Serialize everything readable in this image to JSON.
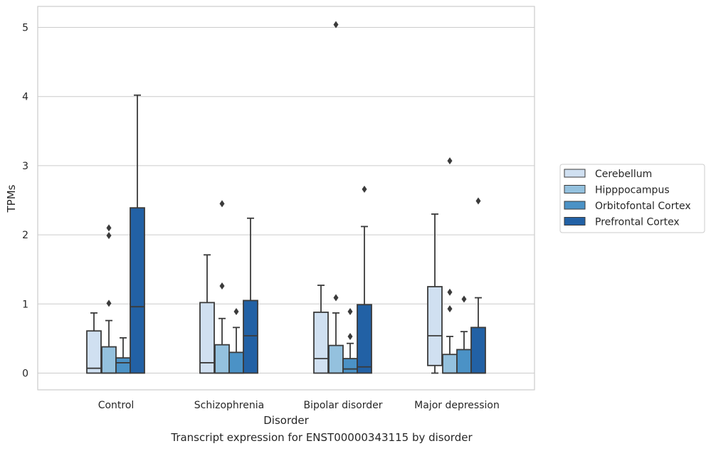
{
  "caption": "Transcript expression for ENST00000343115 by disorder",
  "colors": {
    "Cerebellum": "#d0e0f1",
    "Hipppocampus": "#94c1de",
    "Orbitofontal Cortex": "#4b92c6",
    "Prefrontal Cortex": "#2261a5",
    "line": "#3b3b3b",
    "grid": "#cccccc",
    "frame": "#cccccc"
  },
  "chart_data": {
    "type": "box",
    "title": "",
    "xlabel": "Disorder",
    "ylabel": "TPMs",
    "ylim": [
      -0.25,
      5.3
    ],
    "yticks": [
      0,
      1,
      2,
      3,
      4,
      5
    ],
    "grid": "horizontal",
    "legend": "right",
    "categories": [
      "Control",
      "Schizophrenia",
      "Bipolar disorder",
      "Major depression"
    ],
    "series": [
      {
        "name": "Cerebellum",
        "boxes": [
          {
            "whislo": 0,
            "q1": 0,
            "med": 0.07,
            "q3": 0.61,
            "whishi": 0.87,
            "fliers": []
          },
          {
            "whislo": 0,
            "q1": 0,
            "med": 0.15,
            "q3": 1.02,
            "whishi": 1.71,
            "fliers": []
          },
          {
            "whislo": 0,
            "q1": 0,
            "med": 0.21,
            "q3": 0.88,
            "whishi": 1.27,
            "fliers": []
          },
          {
            "whislo": 0,
            "q1": 0.11,
            "med": 0.54,
            "q3": 1.25,
            "whishi": 2.3,
            "fliers": []
          }
        ]
      },
      {
        "name": "Hipppocampus",
        "boxes": [
          {
            "whislo": 0,
            "q1": 0,
            "med": 0,
            "q3": 0.38,
            "whishi": 0.76,
            "fliers": [
              1.01,
              1.99,
              2.1
            ]
          },
          {
            "whislo": 0,
            "q1": 0,
            "med": 0,
            "q3": 0.41,
            "whishi": 0.79,
            "fliers": [
              1.26,
              2.45
            ]
          },
          {
            "whislo": 0,
            "q1": 0,
            "med": 0,
            "q3": 0.4,
            "whishi": 0.87,
            "fliers": [
              1.09,
              5.04
            ]
          },
          {
            "whislo": 0,
            "q1": 0,
            "med": 0,
            "q3": 0.27,
            "whishi": 0.53,
            "fliers": [
              0.93,
              1.17,
              3.07
            ]
          }
        ]
      },
      {
        "name": "Orbitofontal Cortex",
        "boxes": [
          {
            "whislo": 0,
            "q1": 0,
            "med": 0.15,
            "q3": 0.22,
            "whishi": 0.51,
            "fliers": []
          },
          {
            "whislo": 0,
            "q1": 0,
            "med": 0,
            "q3": 0.3,
            "whishi": 0.66,
            "fliers": [
              0.89
            ]
          },
          {
            "whislo": 0,
            "q1": 0,
            "med": 0.06,
            "q3": 0.21,
            "whishi": 0.43,
            "fliers": [
              0.53,
              0.89
            ]
          },
          {
            "whislo": 0,
            "q1": 0,
            "med": 0,
            "q3": 0.34,
            "whishi": 0.6,
            "fliers": [
              1.07
            ]
          }
        ]
      },
      {
        "name": "Prefrontal Cortex",
        "boxes": [
          {
            "whislo": 0,
            "q1": 0,
            "med": 0.96,
            "q3": 2.39,
            "whishi": 4.02,
            "fliers": []
          },
          {
            "whislo": 0,
            "q1": 0,
            "med": 0.54,
            "q3": 1.05,
            "whishi": 2.24,
            "fliers": []
          },
          {
            "whislo": 0,
            "q1": 0,
            "med": 0.09,
            "q3": 0.99,
            "whishi": 2.12,
            "fliers": [
              2.66
            ]
          },
          {
            "whislo": 0,
            "q1": 0,
            "med": 0,
            "q3": 0.66,
            "whishi": 1.09,
            "fliers": [
              2.49
            ]
          }
        ]
      }
    ]
  }
}
